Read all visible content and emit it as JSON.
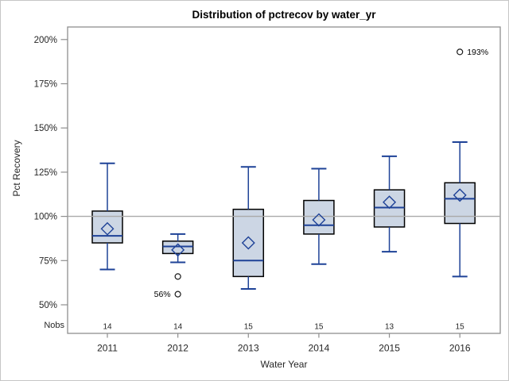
{
  "chart_data": {
    "type": "boxplot",
    "title": "Distribution of pctrecov by water_yr",
    "xlabel": "Water Year",
    "ylabel": "Pct Recovery",
    "ylim": [
      50,
      200
    ],
    "yticks": [
      200,
      175,
      150,
      125,
      100,
      75,
      50
    ],
    "ytick_suffix": "%",
    "refline_y": 100,
    "grid": "off",
    "legend": null,
    "nobs_label": "Nobs",
    "categories": [
      "2011",
      "2012",
      "2013",
      "2014",
      "2015",
      "2016"
    ],
    "nobs": [
      14,
      14,
      15,
      15,
      13,
      15
    ],
    "series": [
      {
        "category": "2011",
        "whisker_low": 70,
        "q1": 85,
        "median": 89,
        "mean": 93,
        "q3": 103,
        "whisker_high": 130,
        "outliers": []
      },
      {
        "category": "2012",
        "whisker_low": 74,
        "q1": 79,
        "median": 83,
        "mean": 81,
        "q3": 86,
        "whisker_high": 90,
        "outliers": [
          {
            "value": 66,
            "label": "",
            "label_side": "none"
          },
          {
            "value": 56,
            "label": "56%",
            "label_side": "left"
          }
        ]
      },
      {
        "category": "2013",
        "whisker_low": 59,
        "q1": 66,
        "median": 75,
        "mean": 85,
        "q3": 104,
        "whisker_high": 128,
        "outliers": []
      },
      {
        "category": "2014",
        "whisker_low": 73,
        "q1": 90,
        "median": 95,
        "mean": 98,
        "q3": 109,
        "whisker_high": 127,
        "outliers": []
      },
      {
        "category": "2015",
        "whisker_low": 80,
        "q1": 94,
        "median": 105,
        "mean": 108,
        "q3": 115,
        "whisker_high": 134,
        "outliers": []
      },
      {
        "category": "2016",
        "whisker_low": 66,
        "q1": 96,
        "median": 110,
        "mean": 112,
        "q3": 119,
        "whisker_high": 142,
        "outliers": [
          {
            "value": 193,
            "label": "193%",
            "label_side": "right"
          }
        ]
      }
    ],
    "colors": {
      "box_fill": "#ccd6e4",
      "box_border": "#000000",
      "line_blue": "#1e4297",
      "refline": "#a9a9a9",
      "frame": "#8e8e8e",
      "text": "#262626",
      "outlier_stroke": "#1a1a1a",
      "outlier_label": "#000000",
      "figure_border": "#c6c6c6",
      "background": "#ffffff"
    }
  }
}
